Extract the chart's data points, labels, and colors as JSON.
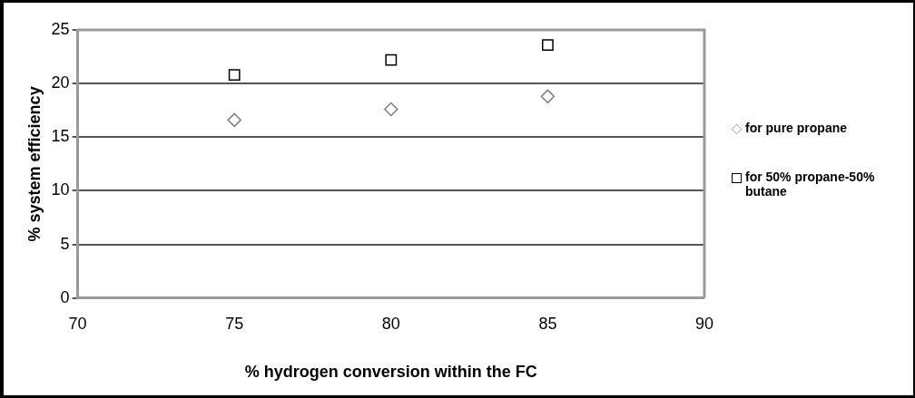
{
  "chart_data": {
    "type": "scatter",
    "xlabel": "% hydrogen conversion within the FC",
    "ylabel": "% system efficiency",
    "x": [
      75,
      80,
      85
    ],
    "series": [
      {
        "name": "for pure propane",
        "color": "#808080",
        "marker": "diamond",
        "values": [
          16.6,
          17.6,
          18.8
        ]
      },
      {
        "name": "for 50% propane-50% butane",
        "color": "#000000",
        "marker": "square",
        "values": [
          20.8,
          22.2,
          23.6
        ]
      }
    ],
    "xlim": [
      70,
      90
    ],
    "xticks": [
      70,
      75,
      80,
      85,
      90
    ],
    "ylim": [
      0,
      25
    ],
    "yticks": [
      0,
      5,
      10,
      15,
      20,
      25
    ],
    "grid": "y",
    "legend": "right"
  }
}
